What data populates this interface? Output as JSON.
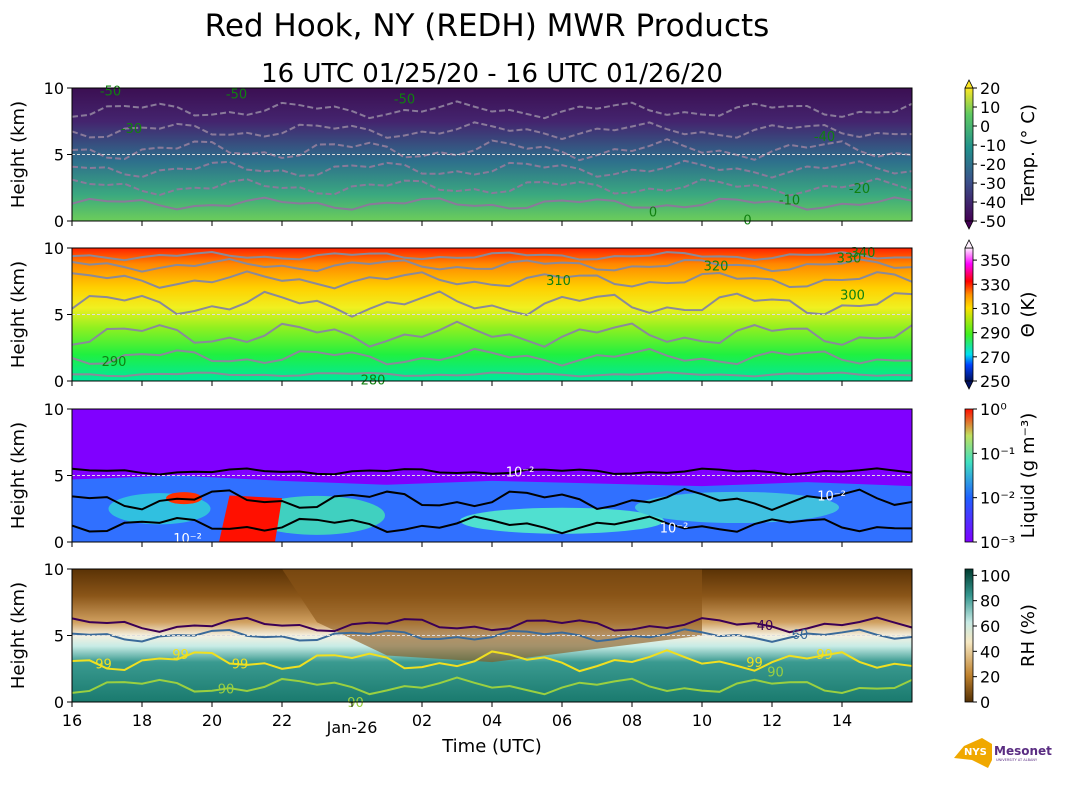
{
  "title": "Red Hook, NY (REDH) MWR Products",
  "subtitle": "16 UTC 01/25/20 - 16 UTC 01/26/20",
  "xlabel": "Time (UTC)",
  "xticks": [
    "16",
    "18",
    "20",
    "22",
    "Jan-26",
    "02",
    "04",
    "06",
    "08",
    "10",
    "12",
    "14"
  ],
  "logo_text": "NYS Mesonet University at Albany",
  "chart_data": [
    {
      "type": "heatmap",
      "name": "temperature",
      "ylabel": "Height (km)",
      "ylim": [
        0,
        10
      ],
      "yticks": [
        "0",
        "5",
        "10"
      ],
      "cbar_label": "Temp. (° C)",
      "cbar_ticks": [
        "20",
        "10",
        "0",
        "-10",
        "-20",
        "-30",
        "-40",
        "-50"
      ],
      "cbar_range": [
        -50,
        20
      ],
      "colors": [
        "#6ccd5a",
        "#2a9a8a",
        "#32628c",
        "#44206a",
        "#3b0f52"
      ],
      "contour_labels": [
        {
          "t": "-50",
          "h": 1.1,
          "z": 9.8
        },
        {
          "t": "-50",
          "h": 4.7,
          "z": 9.6
        },
        {
          "t": "-50",
          "h": 9.5,
          "z": 9.2
        },
        {
          "t": "-30",
          "h": 1.7,
          "z": 7.0
        },
        {
          "t": "-40",
          "h": 21.5,
          "z": 6.4
        },
        {
          "t": "-20",
          "h": 22.5,
          "z": 2.5
        },
        {
          "t": "-10",
          "h": 20.5,
          "z": 1.6
        },
        {
          "t": "0",
          "h": 16.6,
          "z": 0.7
        },
        {
          "t": "0",
          "h": 19.3,
          "z": 0.1
        }
      ]
    },
    {
      "type": "heatmap",
      "name": "potential temperature",
      "ylabel": "Height (km)",
      "ylim": [
        0,
        10
      ],
      "yticks": [
        "0",
        "5",
        "10"
      ],
      "cbar_label": "Θ (K)",
      "cbar_ticks": [
        "350",
        "330",
        "310",
        "290",
        "270",
        "250"
      ],
      "cbar_range": [
        250,
        360
      ],
      "colors": [
        "#00f0a8",
        "#30f020",
        "#b0f020",
        "#ffe000",
        "#ff9000",
        "#ff2000",
        "#ff00ff"
      ],
      "contour_labels": [
        {
          "t": "310",
          "h": 13.9,
          "z": 7.6
        },
        {
          "t": "320",
          "h": 18.4,
          "z": 8.7
        },
        {
          "t": "330",
          "h": 22.2,
          "z": 9.3
        },
        {
          "t": "340",
          "h": 22.6,
          "z": 9.7
        },
        {
          "t": "300",
          "h": 22.3,
          "z": 6.5
        },
        {
          "t": "290",
          "h": 1.2,
          "z": 1.5
        },
        {
          "t": "280",
          "h": 8.6,
          "z": 0.1
        }
      ]
    },
    {
      "type": "heatmap",
      "name": "liquid water",
      "ylabel": "Height (km)",
      "ylim": [
        0,
        10
      ],
      "yticks": [
        "0",
        "5",
        "10"
      ],
      "cbar_label": "Liquid (g m⁻³)",
      "cbar_ticks": [
        "10⁰",
        "10⁻¹",
        "10⁻²",
        "10⁻³"
      ],
      "cbar_range": [
        0.001,
        1
      ],
      "colors": [
        "#8000ff",
        "#2050ff",
        "#30c0f0",
        "#50f0a0",
        "#ff2000"
      ],
      "contour_labels": [
        {
          "t": "10⁻²",
          "h": 12.8,
          "z": 5.3
        },
        {
          "t": "10⁻²",
          "h": 21.7,
          "z": 3.5
        },
        {
          "t": "10⁻²",
          "h": 17.2,
          "z": 1.1
        },
        {
          "t": "10⁻²",
          "h": 3.3,
          "z": 0.3
        }
      ]
    },
    {
      "type": "heatmap",
      "name": "relative humidity",
      "ylabel": "Height (km)",
      "ylim": [
        0,
        10
      ],
      "yticks": [
        "0",
        "5",
        "10"
      ],
      "cbar_label": "RH (%)",
      "cbar_ticks": [
        "100",
        "80",
        "60",
        "40",
        "20",
        "0"
      ],
      "cbar_range": [
        0,
        105
      ],
      "colors": [
        "#1a7a6e",
        "#3a9a90",
        "#c8ece6",
        "#f5f0e0",
        "#d0a060",
        "#8a5518",
        "#5a3205"
      ],
      "contour_labels": [
        {
          "t": "40",
          "h": 19.8,
          "z": 5.8
        },
        {
          "t": "60",
          "h": 20.8,
          "z": 5.1
        },
        {
          "t": "99",
          "h": 0.9,
          "z": 2.9
        },
        {
          "t": "99",
          "h": 3.1,
          "z": 3.6
        },
        {
          "t": "99",
          "h": 4.8,
          "z": 2.9
        },
        {
          "t": "99",
          "h": 19.5,
          "z": 3.0
        },
        {
          "t": "99",
          "h": 21.5,
          "z": 3.6
        },
        {
          "t": "90",
          "h": 4.4,
          "z": 1.0
        },
        {
          "t": "90",
          "h": 20.1,
          "z": 2.3
        },
        {
          "t": "90",
          "h": 8.1,
          "z": 0.0
        }
      ]
    }
  ]
}
